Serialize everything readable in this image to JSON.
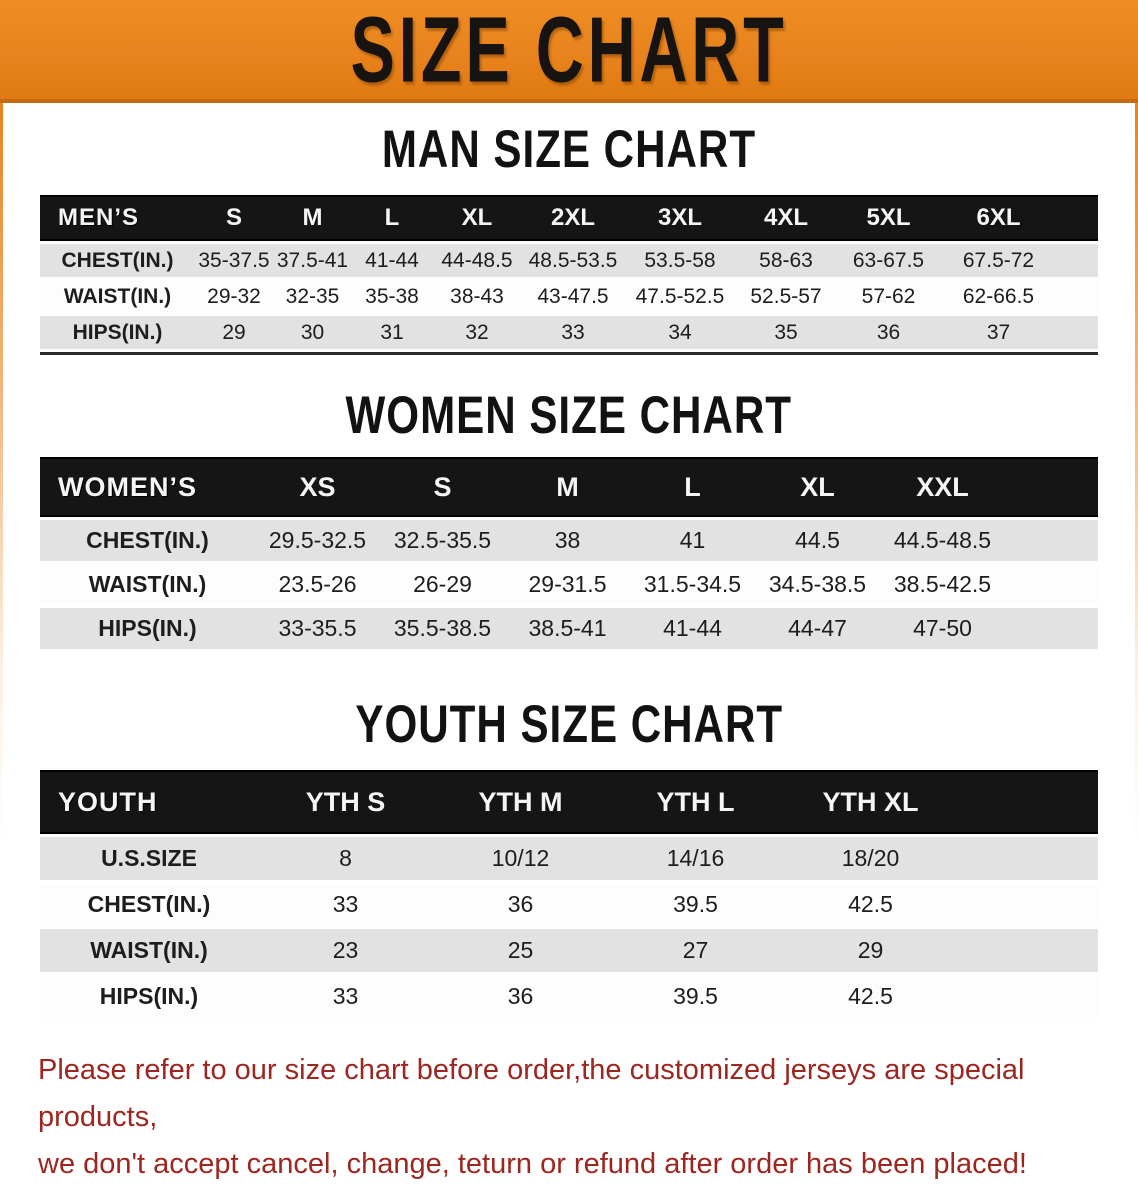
{
  "banner": {
    "title": "SIZE CHART",
    "bg_color": "#E8831D",
    "text_color": "#161311"
  },
  "sections": [
    {
      "id": "men",
      "heading": "MAN SIZE CHART",
      "table": {
        "corner_label": "MEN’S",
        "columns": [
          "S",
          "M",
          "L",
          "XL",
          "2XL",
          "3XL",
          "4XL",
          "5XL",
          "6XL"
        ],
        "rows": [
          {
            "label": "CHEST(IN.)",
            "values": [
              "35-37.5",
              "37.5-41",
              "41-44",
              "44-48.5",
              "48.5-53.5",
              "53.5-58",
              "58-63",
              "63-67.5",
              "67.5-72"
            ]
          },
          {
            "label": "WAIST(IN.)",
            "values": [
              "29-32",
              "32-35",
              "35-38",
              "38-43",
              "43-47.5",
              "47.5-52.5",
              "52.5-57",
              "57-62",
              "62-66.5"
            ]
          },
          {
            "label": "HIPS(IN.)",
            "values": [
              "29",
              "30",
              "31",
              "32",
              "33",
              "34",
              "35",
              "36",
              "37"
            ]
          }
        ]
      }
    },
    {
      "id": "women",
      "heading": "WOMEN SIZE CHART",
      "table": {
        "corner_label": "WOMEN’S",
        "columns": [
          "XS",
          "S",
          "M",
          "L",
          "XL",
          "XXL"
        ],
        "rows": [
          {
            "label": "CHEST(IN.)",
            "values": [
              "29.5-32.5",
              "32.5-35.5",
              "38",
              "41",
              "44.5",
              "44.5-48.5"
            ]
          },
          {
            "label": "WAIST(IN.)",
            "values": [
              "23.5-26",
              "26-29",
              "29-31.5",
              "31.5-34.5",
              "34.5-38.5",
              "38.5-42.5"
            ]
          },
          {
            "label": "HIPS(IN.)",
            "values": [
              "33-35.5",
              "35.5-38.5",
              "38.5-41",
              "41-44",
              "44-47",
              "47-50"
            ]
          }
        ]
      }
    },
    {
      "id": "youth",
      "heading": "YOUTH SIZE CHART",
      "table": {
        "corner_label": "YOUTH",
        "columns": [
          "YTH S",
          "YTH M",
          "YTH L",
          "YTH XL"
        ],
        "rows": [
          {
            "label": "U.S.SIZE",
            "values": [
              "8",
              "10/12",
              "14/16",
              "18/20"
            ]
          },
          {
            "label": "CHEST(IN.)",
            "values": [
              "33",
              "36",
              "39.5",
              "42.5"
            ]
          },
          {
            "label": "WAIST(IN.)",
            "values": [
              "23",
              "25",
              "27",
              "29"
            ]
          },
          {
            "label": "HIPS(IN.)",
            "values": [
              "33",
              "36",
              "39.5",
              "42.5"
            ]
          }
        ]
      }
    }
  ],
  "footer": {
    "line1": "Please refer to our size chart before order,the customized jerseys are special products,",
    "line2": "we don't accept cancel, change, teturn or refund after order has been placed!",
    "text_color": "#9e2620"
  }
}
